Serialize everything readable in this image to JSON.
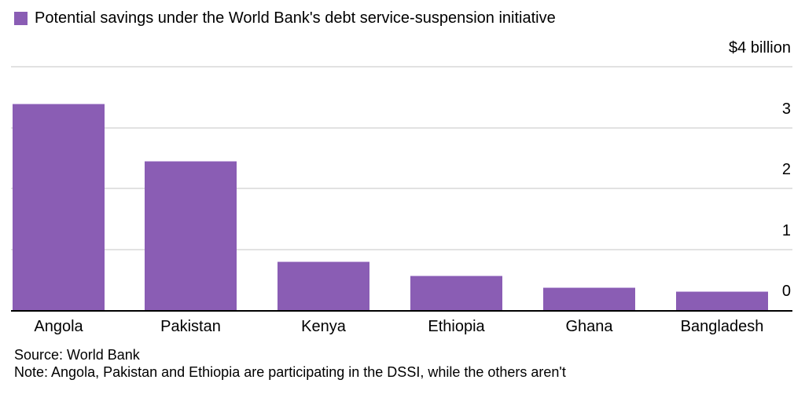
{
  "legend": {
    "label": "Potential savings under the World Bank's debt service-suspension initiative",
    "color": "#8a5db4"
  },
  "unit_label": "$4 billion",
  "footer": {
    "source": "Source: World Bank",
    "note": "Note: Angola, Pakistan and Ethiopia are participating in the DSSI, while the others aren't"
  },
  "chart_data": {
    "type": "bar",
    "title": "",
    "legend": [
      "Potential savings under the World Bank's debt service-suspension initiative"
    ],
    "categories": [
      "Angola",
      "Pakistan",
      "Kenya",
      "Ethiopia",
      "Ghana",
      "Bangladesh"
    ],
    "values": [
      3.4,
      2.45,
      0.8,
      0.57,
      0.37,
      0.31
    ],
    "xlabel": "",
    "ylabel": "$ billion",
    "ylim": [
      0,
      4
    ],
    "yticks": [
      "0",
      "1",
      "2",
      "3",
      "$4 billion"
    ],
    "grid": true,
    "legend_position": "top-left",
    "axis_position": "right",
    "bar_color": "#8a5db4"
  }
}
